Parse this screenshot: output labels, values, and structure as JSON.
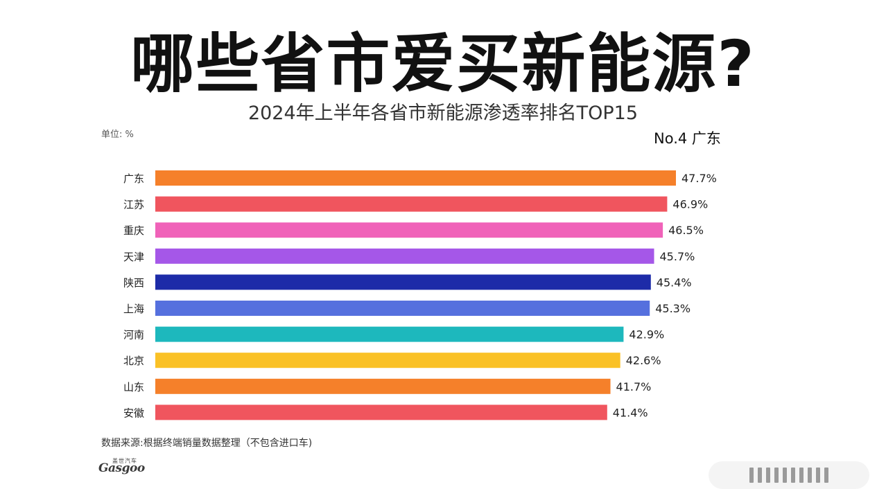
{
  "headline": "哪些省市爱买新能源?",
  "chart_data": {
    "type": "bar",
    "orientation": "horizontal",
    "title": "2024年上半年各省市新能源渗透率排名TOP15",
    "unit_label": "单位: %",
    "highlight_label": "No.4 广东",
    "categories": [
      "广东",
      "江苏",
      "重庆",
      "天津",
      "陕西",
      "上海",
      "河南",
      "北京",
      "山东",
      "安徽"
    ],
    "values": [
      47.7,
      46.9,
      46.5,
      45.7,
      45.4,
      45.3,
      42.9,
      42.6,
      41.7,
      41.4
    ],
    "value_labels": [
      "47.7%",
      "46.9%",
      "46.5%",
      "45.7%",
      "45.4%",
      "45.3%",
      "42.9%",
      "42.6%",
      "41.7%",
      "41.4%"
    ],
    "colors": [
      "#F5802A",
      "#F0555E",
      "#F062B9",
      "#A557E8",
      "#1D2BA8",
      "#5570DE",
      "#1DB8BD",
      "#FAC126",
      "#F5802A",
      "#F0555E"
    ],
    "xlim": [
      0,
      47.7
    ],
    "grid": false,
    "legend": "none"
  },
  "source": "数据来源:根据终端销量数据整理（不包含进口车)",
  "logo_text": "Gasgoo",
  "logo_small": "盖世汽车"
}
